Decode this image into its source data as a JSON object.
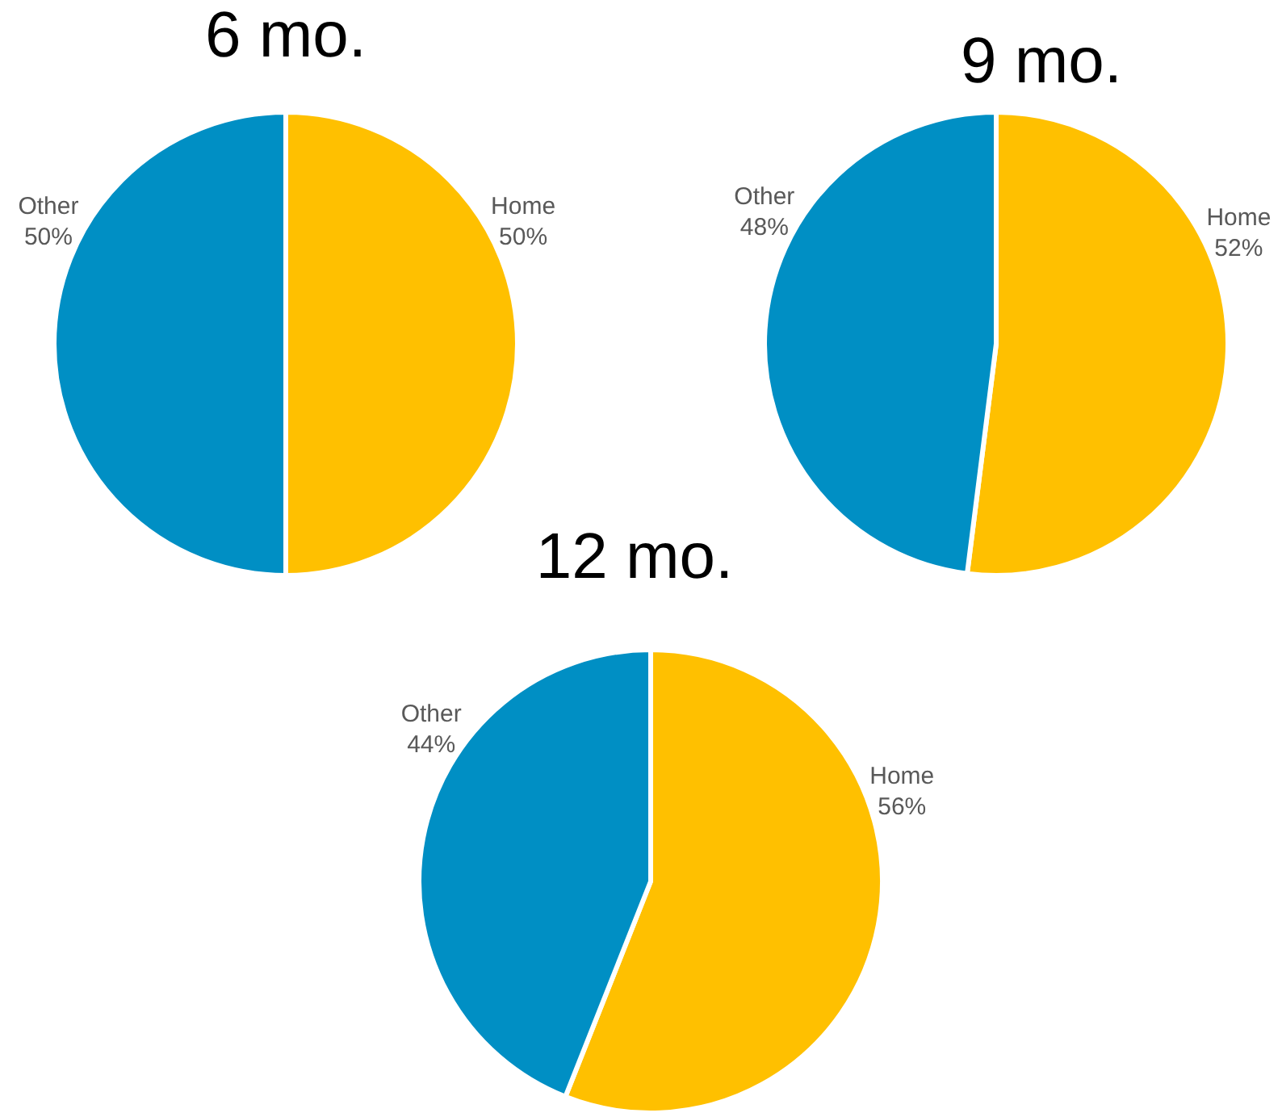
{
  "chart_data": [
    {
      "type": "pie",
      "title": "6 mo.",
      "categories": [
        "Home",
        "Other"
      ],
      "values": [
        50,
        50
      ],
      "value_labels": [
        "50%",
        "50%"
      ],
      "colors": [
        "#ffc000",
        "#008fc4"
      ],
      "legend": false
    },
    {
      "type": "pie",
      "title": "9 mo.",
      "categories": [
        "Home",
        "Other"
      ],
      "values": [
        52,
        48
      ],
      "value_labels": [
        "52%",
        "48%"
      ],
      "colors": [
        "#ffc000",
        "#008fc4"
      ],
      "legend": false
    },
    {
      "type": "pie",
      "title": "12 mo.",
      "categories": [
        "Home",
        "Other"
      ],
      "values": [
        56,
        44
      ],
      "value_labels": [
        "56%",
        "44%"
      ],
      "colors": [
        "#ffc000",
        "#008fc4"
      ],
      "legend": false
    }
  ]
}
